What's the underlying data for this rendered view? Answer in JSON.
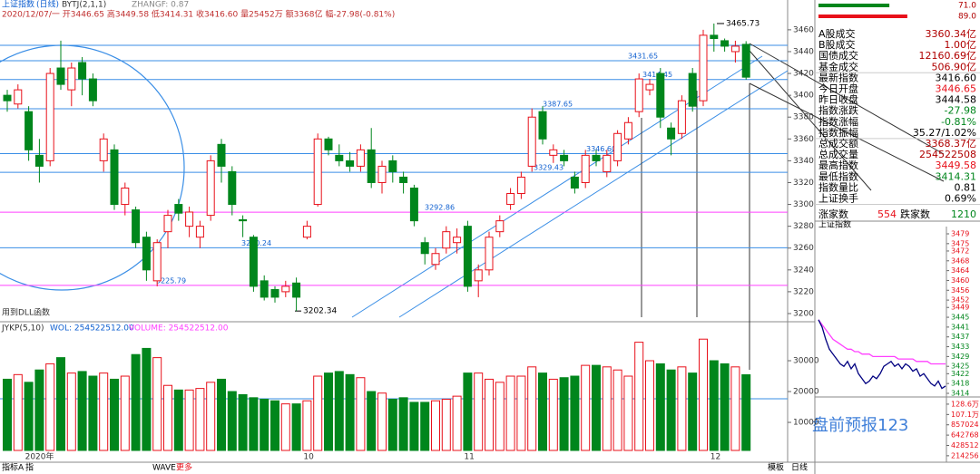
{
  "chart_data": {
    "type": "candlestick",
    "header": {
      "title": "上证指数",
      "period": "(日线)",
      "indicator": "BYTJ(2,1,1)",
      "zhangf": "ZHANGF: 0.87",
      "info": "2020/12/07/一 开3446.65 高3449.58 低3414.31 收3416.60 量25452万 额3368亿 幅-27.98(-0.81%)",
      "dll": "用到DLL函数"
    },
    "up_color": "#e8101a",
    "down_color": "#00861c",
    "ylim": [
      3195,
      3479
    ],
    "yticks": [
      3200,
      3220,
      3240,
      3260,
      3280,
      3300,
      3320,
      3340,
      3360,
      3380,
      3400,
      3420,
      3440,
      3460
    ],
    "month_labels": [
      "2020年",
      "10",
      "11",
      "12"
    ],
    "candles": [
      [
        3400,
        3405,
        3385,
        3395
      ],
      [
        3392,
        3410,
        3388,
        3405
      ],
      [
        3385,
        3390,
        3340,
        3350
      ],
      [
        3345,
        3360,
        3320,
        3335
      ],
      [
        3340,
        3425,
        3335,
        3420
      ],
      [
        3425,
        3450,
        3405,
        3410
      ],
      [
        3405,
        3430,
        3390,
        3425
      ],
      [
        3430,
        3435,
        3400,
        3415
      ],
      [
        3415,
        3420,
        3390,
        3395
      ],
      [
        3340,
        3365,
        3330,
        3360
      ],
      [
        3350,
        3355,
        3295,
        3300
      ],
      [
        3300,
        3320,
        3290,
        3315
      ],
      [
        3295,
        3298,
        3260,
        3265
      ],
      [
        3270,
        3275,
        3230,
        3240
      ],
      [
        3230,
        3268,
        3225,
        3265
      ],
      [
        3275,
        3295,
        3260,
        3290
      ],
      [
        3300,
        3305,
        3285,
        3292
      ],
      [
        3280,
        3298,
        3270,
        3293
      ],
      [
        3270,
        3285,
        3260,
        3280
      ],
      [
        3290,
        3345,
        3285,
        3340
      ],
      [
        3355,
        3360,
        3320,
        3335
      ],
      [
        3330,
        3335,
        3290,
        3300
      ],
      [
        3286,
        3290,
        3270,
        3285
      ],
      [
        3270,
        3272,
        3220,
        3225
      ],
      [
        3230,
        3235,
        3212,
        3215
      ],
      [
        3222,
        3225,
        3210,
        3215
      ],
      [
        3220,
        3230,
        3215,
        3225
      ],
      [
        3228,
        3233,
        3202.34,
        3215
      ],
      [
        3270,
        3285,
        3268,
        3280
      ],
      [
        3300,
        3365,
        3298,
        3360
      ],
      [
        3360,
        3362,
        3345,
        3350
      ],
      [
        3345,
        3355,
        3335,
        3340
      ],
      [
        3340,
        3348,
        3330,
        3335
      ],
      [
        3335,
        3355,
        3330,
        3350
      ],
      [
        3350,
        3370,
        3315,
        3320
      ],
      [
        3320,
        3340,
        3310,
        3335
      ],
      [
        3340,
        3345,
        3320,
        3330
      ],
      [
        3325,
        3330,
        3310,
        3320
      ],
      [
        3315,
        3318,
        3280,
        3285
      ],
      [
        3265,
        3270,
        3245,
        3255
      ],
      [
        3245,
        3260,
        3240,
        3255
      ],
      [
        3260,
        3280,
        3255,
        3275
      ],
      [
        3265,
        3278,
        3255,
        3270
      ],
      [
        3280,
        3285,
        3220,
        3225
      ],
      [
        3230,
        3245,
        3215,
        3240
      ],
      [
        3240,
        3275,
        3235,
        3270
      ],
      [
        3275,
        3290,
        3270,
        3285
      ],
      [
        3300,
        3315,
        3295,
        3310
      ],
      [
        3310,
        3330,
        3305,
        3325
      ],
      [
        3335,
        3388,
        3330,
        3380
      ],
      [
        3385,
        3390,
        3355,
        3360
      ],
      [
        3345,
        3355,
        3338,
        3350
      ],
      [
        3345,
        3350,
        3335,
        3340
      ],
      [
        3325,
        3330,
        3310,
        3315
      ],
      [
        3320,
        3350,
        3315,
        3345
      ],
      [
        3345,
        3350,
        3335,
        3340
      ],
      [
        3330,
        3350,
        3325,
        3345
      ],
      [
        3340,
        3368,
        3335,
        3365
      ],
      [
        3360,
        3380,
        3355,
        3375
      ],
      [
        3385,
        3420,
        3380,
        3415
      ],
      [
        3405,
        3415,
        3400,
        3410
      ],
      [
        3420,
        3425,
        3370,
        3380
      ],
      [
        3370,
        3375,
        3345,
        3360
      ],
      [
        3365,
        3400,
        3360,
        3395
      ],
      [
        3420,
        3425,
        3385,
        3390
      ],
      [
        3395,
        3460,
        3390,
        3455
      ],
      [
        3455,
        3465.73,
        3440,
        3452
      ],
      [
        3450,
        3452,
        3440,
        3445
      ],
      [
        3440,
        3450,
        3430,
        3445
      ],
      [
        3446.65,
        3449.58,
        3414.31,
        3416.6
      ]
    ],
    "levels": [
      {
        "value": 3431.65,
        "color": "#3a8ee6"
      },
      {
        "value": 3414.45,
        "color": "#3a8ee6"
      },
      {
        "value": 3387.65,
        "color": "#3a8ee6"
      },
      {
        "value": 3346.6,
        "label": "3346.60",
        "color": "#3a8ee6"
      },
      {
        "value": 3329.43,
        "color": "#3a8ee6"
      },
      {
        "value": 3292.86,
        "color": "#ff40ff"
      },
      {
        "value": 3260.24,
        "color": "#3a8ee6"
      },
      {
        "value": 3225.79,
        "color": "#ff40ff"
      }
    ],
    "points": [
      3465.73,
      3202.34
    ],
    "volume": {
      "header": "JYKP(5,10)",
      "wol": "WOL: 254522512.00",
      "vol": "VOLUME: 254522512.00",
      "ylim": [
        900,
        40000
      ],
      "yticks": [
        10000,
        20000,
        30000
      ],
      "values": [
        24000,
        25500,
        23000,
        27000,
        29000,
        31000,
        26000,
        26500,
        25000,
        26000,
        24000,
        25000,
        32000,
        34000,
        31000,
        22000,
        20500,
        20500,
        21000,
        23000,
        24000,
        20000,
        19000,
        18000,
        17500,
        17000,
        16000,
        16000,
        17000,
        25000,
        26000,
        26500,
        25500,
        24500,
        20000,
        19500,
        17500,
        18000,
        16500,
        16500,
        17000,
        17500,
        18500,
        26000,
        26000,
        24000,
        23000,
        25000,
        25000,
        28000,
        26000,
        24000,
        24500,
        25000,
        28500,
        28500,
        28000,
        27000,
        25000,
        36000,
        30000,
        29000,
        27000,
        28000,
        26000,
        37000,
        30000,
        29000,
        28000,
        25452
      ]
    },
    "tabs": [
      "指标A",
      "指",
      "WAVE",
      "更多",
      "模板",
      "日线"
    ],
    "watermark": "盘前预报123",
    "panel": {
      "strength": [
        71.0,
        89.0
      ],
      "strength_labels": [
        "71.0",
        "89.0"
      ],
      "rows": [
        {
          "label": "A股成交",
          "value": "3360.34亿",
          "color": "#b00000"
        },
        {
          "label": "B股成交",
          "value": "1.00亿",
          "color": "#b00000"
        },
        {
          "label": "国债成交",
          "value": "12160.69亿",
          "color": "#b00000"
        },
        {
          "label": "基金成交",
          "value": "506.90亿",
          "color": "#b00000"
        },
        {
          "label": "最新指数",
          "value": "3416.60",
          "color": "#000"
        },
        {
          "label": "今日开盘",
          "value": "3446.65",
          "color": "#e8101a"
        },
        {
          "label": "昨日收盘",
          "value": "3444.58",
          "color": "#000"
        },
        {
          "label": "指数涨跌",
          "value": "-27.98",
          "color": "#00861c"
        },
        {
          "label": "指数涨幅",
          "value": "-0.81%",
          "color": "#00861c"
        },
        {
          "label": "指数振幅",
          "value": "35.27/1.02%",
          "color": "#000"
        },
        {
          "label": "总成交额",
          "value": "3368.37亿",
          "color": "#b00000"
        },
        {
          "label": "总成交量",
          "value": "254522508",
          "color": "#b00000"
        },
        {
          "label": "最高指数",
          "value": "3449.58",
          "color": "#e8101a"
        },
        {
          "label": "最低指数",
          "value": "3414.31",
          "color": "#00861c"
        },
        {
          "label": "指数量比",
          "value": "0.81",
          "color": "#000"
        },
        {
          "label": "上证换手",
          "value": "0.69%",
          "color": "#000"
        }
      ],
      "up_label": "涨家数",
      "up_count": 554,
      "down_label": "跌家数",
      "down_count": 1210
    },
    "mini": {
      "title": "上证指数",
      "ylim": [
        3414,
        3479
      ],
      "yticks": [
        3479,
        3475,
        3472,
        3468,
        3464,
        3460,
        3456,
        3452,
        3449,
        3445,
        3441,
        3437,
        3433,
        3429,
        3425,
        3422,
        3418,
        3414
      ],
      "price": [
        3444,
        3441,
        3436,
        3432,
        3430,
        3428,
        3426,
        3425,
        3427,
        3424,
        3426,
        3422,
        3420,
        3418,
        3419,
        3421,
        3420,
        3422,
        3425,
        3426,
        3427,
        3425,
        3426,
        3424,
        3426,
        3425,
        3423,
        3424,
        3421,
        3422,
        3420,
        3418,
        3417,
        3419,
        3416,
        3417
      ],
      "average": [
        3444,
        3442,
        3440,
        3438,
        3436,
        3435,
        3434,
        3433,
        3432,
        3432,
        3431,
        3431,
        3430,
        3430,
        3430,
        3429,
        3429,
        3429,
        3429,
        3429,
        3429,
        3429,
        3428,
        3428,
        3428,
        3428,
        3428,
        3427,
        3427,
        3427,
        3427,
        3426,
        3426,
        3426,
        3426,
        3426
      ],
      "price_color": "#000080",
      "average_color": "#ff40ff",
      "vlim": [
        80000,
        1360000
      ],
      "vticks": [
        {
          "value": 1286000,
          "label": "128.6万"
        },
        {
          "value": 1071000,
          "label": "107.1万"
        },
        857024,
        642768,
        428512,
        214256
      ]
    }
  }
}
